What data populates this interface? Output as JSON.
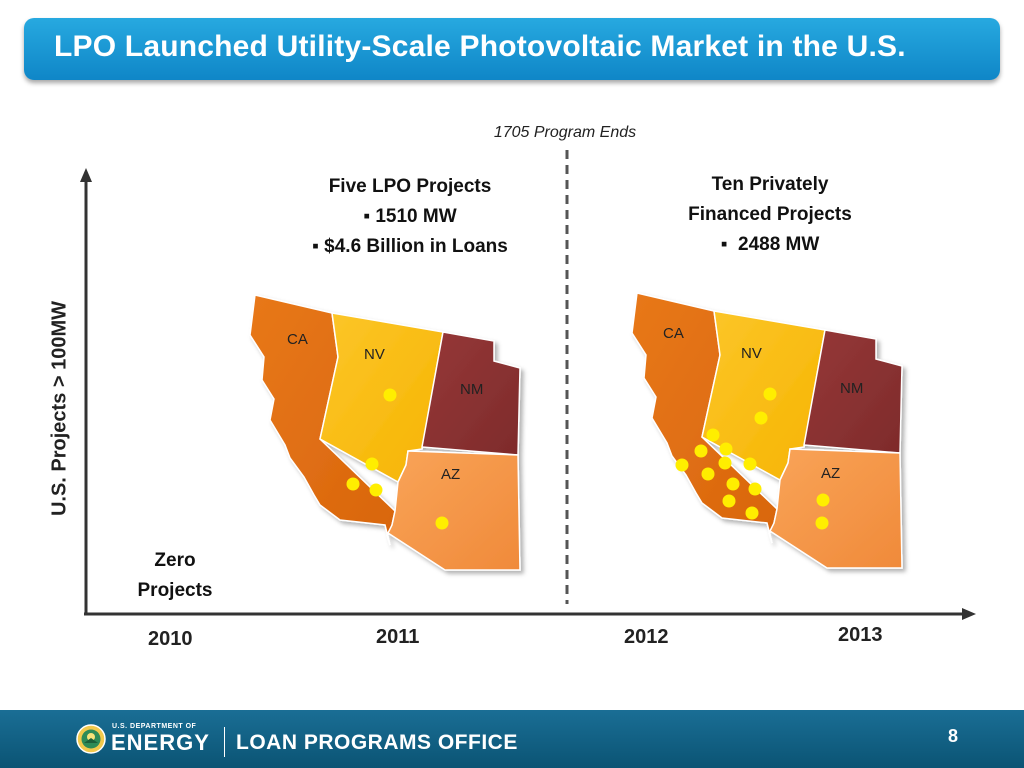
{
  "title": "LPO Launched Utility-Scale Photovoltaic Market in the U.S.",
  "annotation": "1705 Program Ends",
  "lpo_block": {
    "line1": "Five LPO Projects",
    "line2": "1510 MW",
    "line3": "$4.6 Billion in Loans"
  },
  "private_block": {
    "line1": "Ten Privately",
    "line2": "Financed Projects",
    "line3": "2488 MW"
  },
  "zero_block": {
    "line1": "Zero",
    "line2": "Projects"
  },
  "y_axis_label": "U.S. Projects > 100MW",
  "years": [
    "2010",
    "2011",
    "2012",
    "2013"
  ],
  "states": {
    "ca": "CA",
    "nv": "NV",
    "nm": "NM",
    "az": "AZ"
  },
  "colors": {
    "ca": "#e5700f",
    "nv": "#fbbf0c",
    "nm": "#8b3232",
    "az": "#f79a4b",
    "dot": "#ffee00",
    "title_bar": "#1a9bd7",
    "footer": "#0f6186"
  },
  "footer": {
    "agency_small": "U.S. DEPARTMENT OF",
    "agency": "ENERGY",
    "office": "LOAN PROGRAMS OFFICE",
    "page": "8"
  },
  "bullet": "▪"
}
